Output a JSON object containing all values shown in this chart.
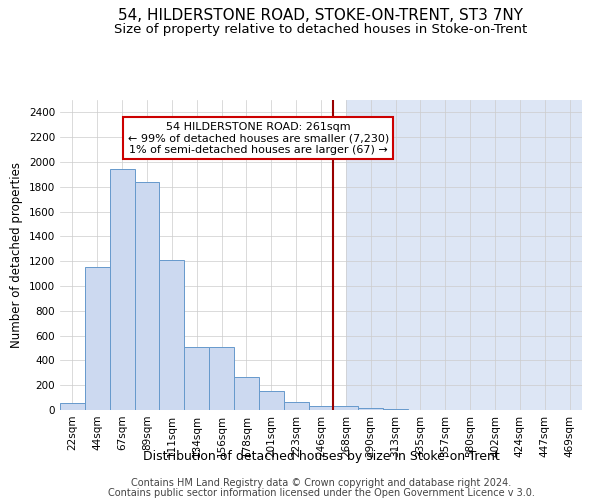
{
  "title": "54, HILDERSTONE ROAD, STOKE-ON-TRENT, ST3 7NY",
  "subtitle": "Size of property relative to detached houses in Stoke-on-Trent",
  "xlabel": "Distribution of detached houses by size in Stoke-on-Trent",
  "ylabel": "Number of detached properties",
  "footer1": "Contains HM Land Registry data © Crown copyright and database right 2024.",
  "footer2": "Contains public sector information licensed under the Open Government Licence v 3.0.",
  "bin_labels": [
    "22sqm",
    "44sqm",
    "67sqm",
    "89sqm",
    "111sqm",
    "134sqm",
    "156sqm",
    "178sqm",
    "201sqm",
    "223sqm",
    "246sqm",
    "268sqm",
    "290sqm",
    "313sqm",
    "335sqm",
    "357sqm",
    "380sqm",
    "402sqm",
    "424sqm",
    "447sqm",
    "469sqm"
  ],
  "bar_heights": [
    55,
    1150,
    1940,
    1840,
    1210,
    510,
    510,
    270,
    150,
    65,
    35,
    30,
    15,
    8,
    3,
    2,
    1,
    1,
    1,
    1,
    0
  ],
  "bar_color": "#ccd9f0",
  "bar_edge_color": "#6699cc",
  "highlight_bin": 11,
  "highlight_color": "#990000",
  "annotation_text": "54 HILDERSTONE ROAD: 261sqm\n← 99% of detached houses are smaller (7,230)\n1% of semi-detached houses are larger (67) →",
  "annotation_box_color": "#ffffff",
  "annotation_box_edge": "#cc0000",
  "ylim": [
    0,
    2500
  ],
  "yticks": [
    0,
    200,
    400,
    600,
    800,
    1000,
    1200,
    1400,
    1600,
    1800,
    2000,
    2200,
    2400
  ],
  "bg_left_color": "#ffffff",
  "bg_right_color": "#dde6f5",
  "title_fontsize": 11,
  "subtitle_fontsize": 9.5,
  "xlabel_fontsize": 9,
  "ylabel_fontsize": 8.5,
  "tick_fontsize": 7.5,
  "footer_fontsize": 7,
  "annotation_fontsize": 8
}
